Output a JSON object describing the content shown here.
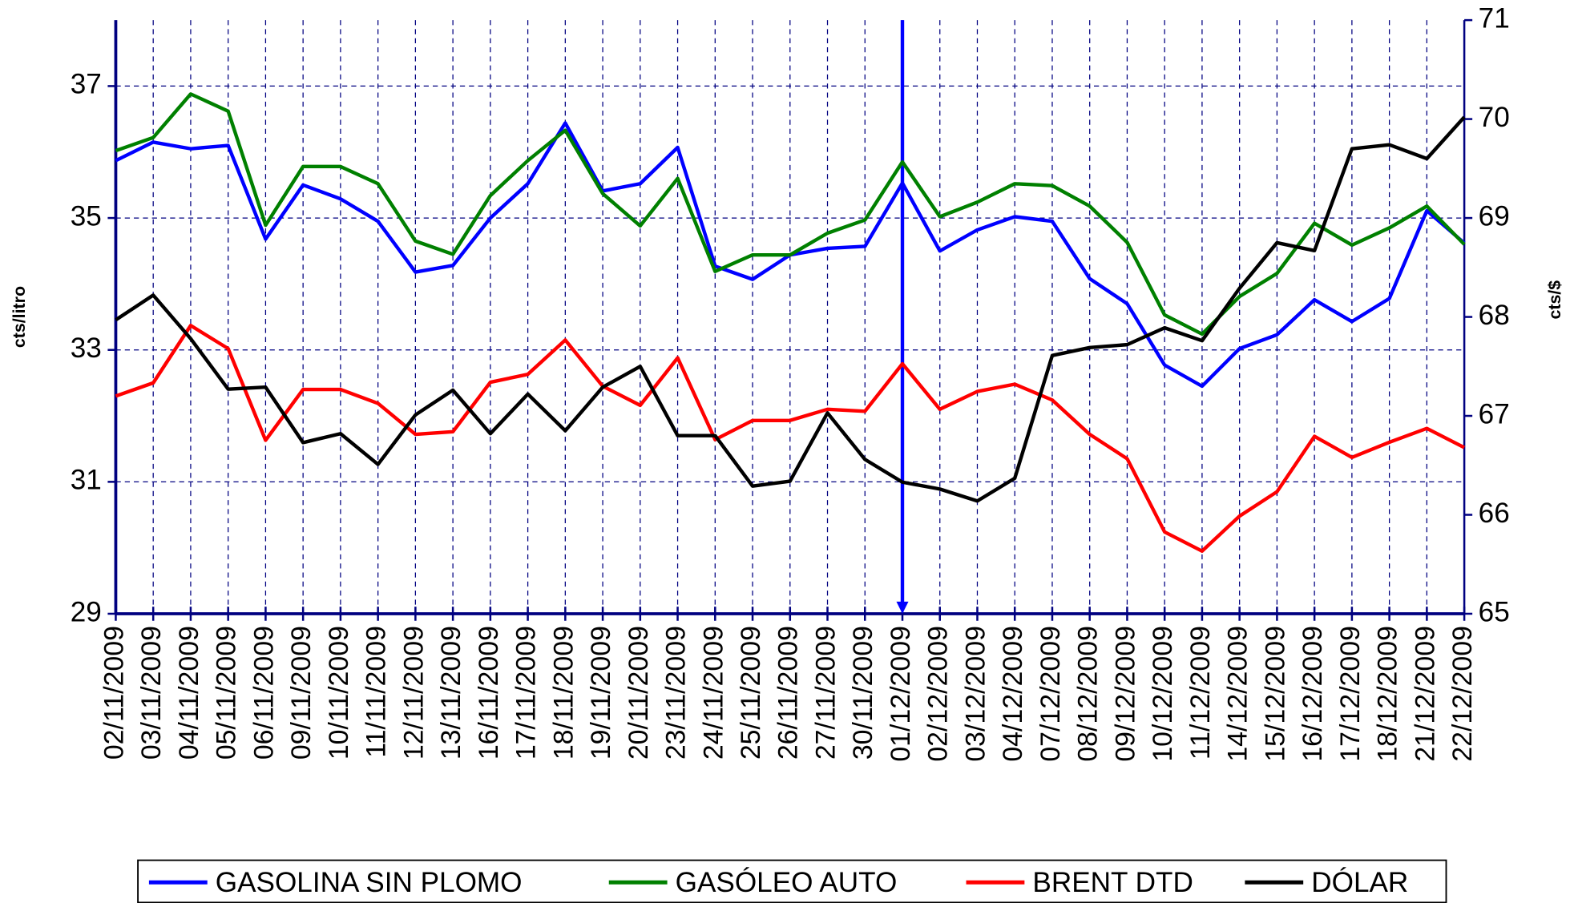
{
  "chart_data": {
    "type": "line",
    "categories": [
      "02/11/2009",
      "03/11/2009",
      "04/11/2009",
      "05/11/2009",
      "06/11/2009",
      "09/11/2009",
      "10/11/2009",
      "11/11/2009",
      "12/11/2009",
      "13/11/2009",
      "16/11/2009",
      "17/11/2009",
      "18/11/2009",
      "19/11/2009",
      "20/11/2009",
      "23/11/2009",
      "24/11/2009",
      "25/11/2009",
      "26/11/2009",
      "27/11/2009",
      "30/11/2009",
      "01/12/2009",
      "02/12/2009",
      "03/12/2009",
      "04/12/2009",
      "07/12/2009",
      "08/12/2009",
      "09/12/2009",
      "10/12/2009",
      "11/12/2009",
      "14/12/2009",
      "15/12/2009",
      "16/12/2009",
      "17/12/2009",
      "18/12/2009",
      "21/12/2009",
      "22/12/2009"
    ],
    "series": [
      {
        "name": "GASOLINA SIN PLOMO",
        "color": "#0000ff",
        "values": [
          35.87,
          36.15,
          36.05,
          36.1,
          34.68,
          35.5,
          35.29,
          34.95,
          34.18,
          34.28,
          35.0,
          35.52,
          36.44,
          35.41,
          35.52,
          36.07,
          34.27,
          34.07,
          34.44,
          34.54,
          34.57,
          35.53,
          34.5,
          34.82,
          35.02,
          34.95,
          34.08,
          33.7,
          32.77,
          32.45,
          33.02,
          33.23,
          33.76,
          33.43,
          33.78,
          35.11,
          34.62
        ]
      },
      {
        "name": "GASÓLEO AUTO",
        "color": "#008000",
        "values": [
          36.02,
          36.22,
          36.88,
          36.62,
          34.89,
          35.78,
          35.78,
          35.52,
          34.65,
          34.45,
          35.34,
          35.87,
          36.33,
          35.37,
          34.88,
          35.6,
          34.19,
          34.44,
          34.44,
          34.77,
          34.97,
          35.85,
          35.02,
          35.24,
          35.52,
          35.49,
          35.18,
          34.63,
          33.53,
          33.24,
          33.81,
          34.16,
          34.92,
          34.59,
          34.85,
          35.18,
          34.6
        ]
      },
      {
        "name": "BRENT DTD",
        "color": "#ff0000",
        "values": [
          32.3,
          32.5,
          33.37,
          33.02,
          31.63,
          32.4,
          32.4,
          32.19,
          31.72,
          31.76,
          32.51,
          32.63,
          33.15,
          32.45,
          32.16,
          32.88,
          31.64,
          31.93,
          31.93,
          32.1,
          32.07,
          32.79,
          32.1,
          32.37,
          32.48,
          32.24,
          31.72,
          31.35,
          30.24,
          29.95,
          30.48,
          30.85,
          31.69,
          31.37,
          31.6,
          31.81,
          31.52
        ]
      },
      {
        "name": "DÓLAR",
        "color": "#000000",
        "axis": "y2",
        "values": [
          67.97,
          68.22,
          67.78,
          67.27,
          67.29,
          66.73,
          66.82,
          66.51,
          67.01,
          67.26,
          66.82,
          67.22,
          66.85,
          67.29,
          67.5,
          66.8,
          66.8,
          66.29,
          66.34,
          67.03,
          66.56,
          66.33,
          66.26,
          66.14,
          66.37,
          67.61,
          67.69,
          67.72,
          67.89,
          67.76,
          68.29,
          68.75,
          68.67,
          69.7,
          69.74,
          69.6,
          70.02
        ]
      }
    ],
    "ylabel": "cts/litro",
    "y2label": "cts/$",
    "ylim": [
      29,
      38
    ],
    "yticks": [
      29,
      31,
      33,
      35,
      37
    ],
    "y2lim": [
      65,
      71
    ],
    "y2ticks": [
      65,
      66,
      67,
      68,
      69,
      70,
      71
    ],
    "grid": true,
    "legend": "bottom",
    "axis_color": "#000080",
    "marker_line": "01/12/2009",
    "marker_color": "#0000ff"
  }
}
